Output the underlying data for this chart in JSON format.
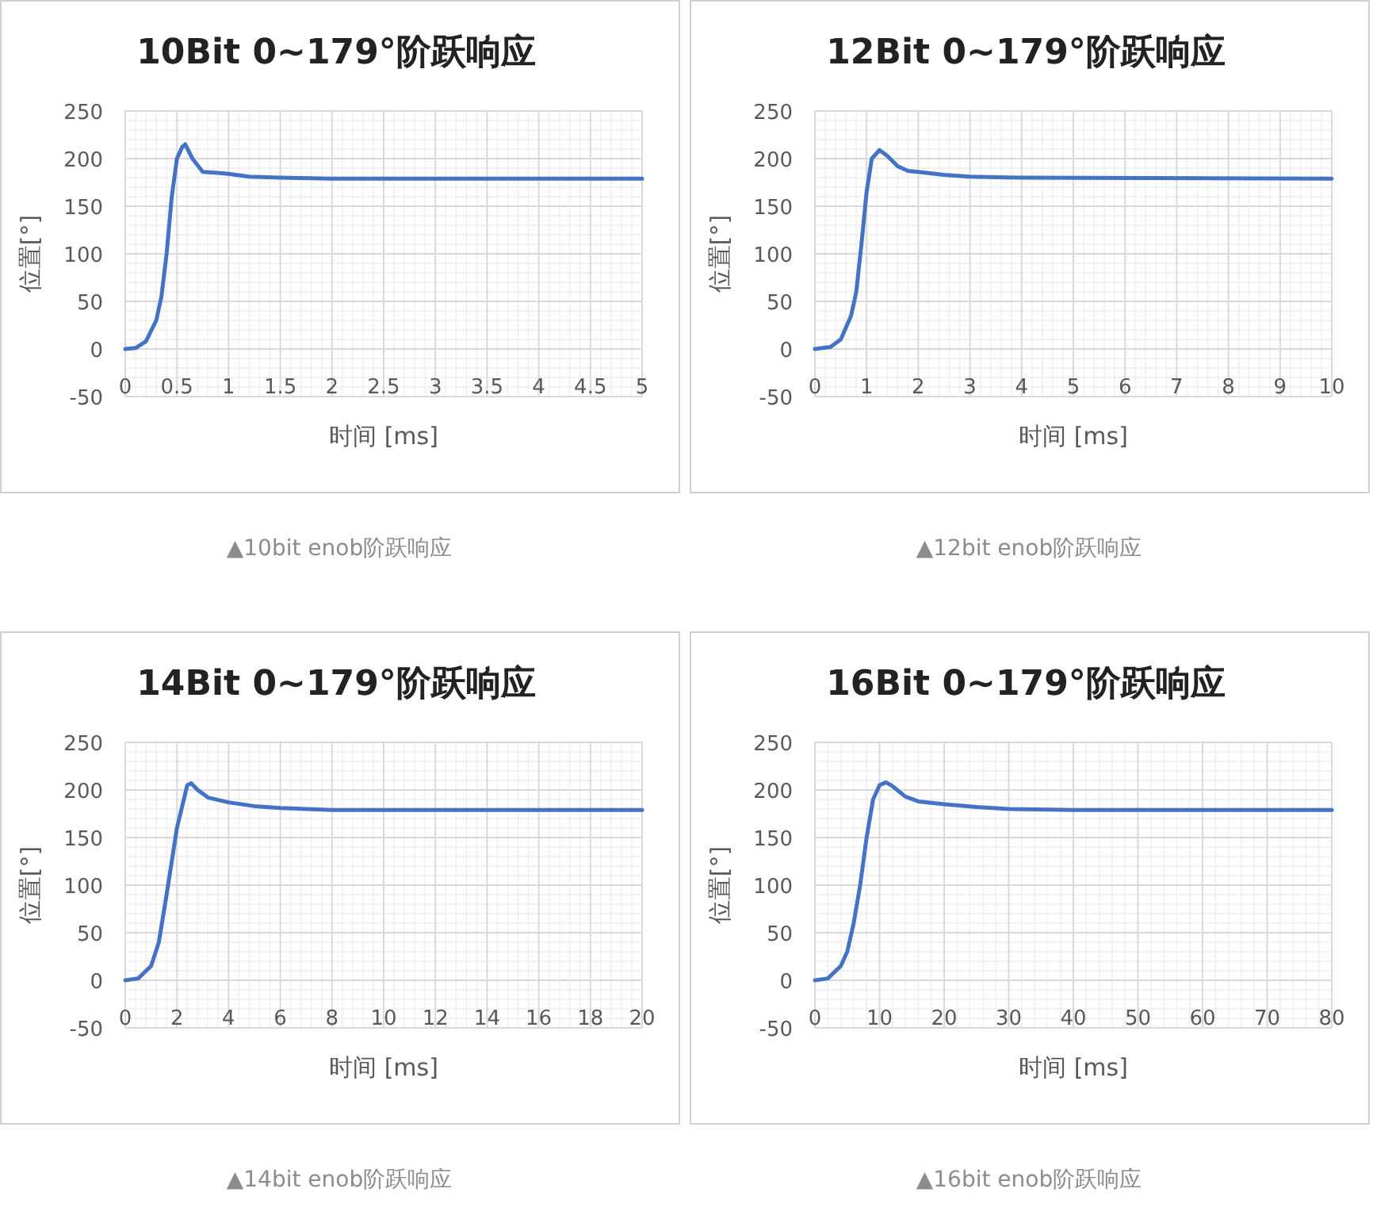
{
  "chart_data": [
    {
      "type": "line",
      "title": "10Bit 0~179°阶跃响应",
      "xlabel": "时间 [ms]",
      "ylabel": "位置[°]",
      "color": "#4472c4",
      "grid": true,
      "xlim": [
        0,
        5
      ],
      "xticks": [
        0,
        0.5,
        1,
        1.5,
        2,
        2.5,
        3,
        3.5,
        4,
        4.5,
        5
      ],
      "ylim": [
        -50,
        250
      ],
      "yticks": [
        -50,
        0,
        50,
        100,
        150,
        200,
        250
      ],
      "x": [
        0,
        0.1,
        0.2,
        0.3,
        0.35,
        0.4,
        0.45,
        0.5,
        0.55,
        0.58,
        0.65,
        0.75,
        0.9,
        1.0,
        1.2,
        1.5,
        2,
        5
      ],
      "values": [
        0,
        1,
        8,
        30,
        55,
        100,
        160,
        200,
        212,
        215,
        200,
        186,
        185,
        184,
        181,
        180,
        179,
        179
      ],
      "annotations": [
        "▲10bit enob阶跃响应"
      ]
    },
    {
      "type": "line",
      "title": "12Bit 0~179°阶跃响应",
      "xlabel": "时间 [ms]",
      "ylabel": "位置[°]",
      "color": "#4472c4",
      "grid": true,
      "xlim": [
        0,
        10
      ],
      "xticks": [
        0,
        1,
        2,
        3,
        4,
        5,
        6,
        7,
        8,
        9,
        10
      ],
      "ylim": [
        -50,
        250
      ],
      "yticks": [
        -50,
        0,
        50,
        100,
        150,
        200,
        250
      ],
      "x": [
        0,
        0.3,
        0.5,
        0.7,
        0.8,
        0.9,
        1.0,
        1.1,
        1.25,
        1.4,
        1.6,
        1.8,
        2,
        2.5,
        3,
        4,
        10
      ],
      "values": [
        0,
        2,
        10,
        35,
        60,
        110,
        165,
        200,
        209,
        203,
        192,
        187,
        186,
        183,
        181,
        180,
        179
      ],
      "annotations": [
        "▲12bit enob阶跃响应"
      ]
    },
    {
      "type": "line",
      "title": "14Bit 0~179°阶跃响应",
      "xlabel": "时间 [ms]",
      "ylabel": "位置[°]",
      "color": "#4472c4",
      "grid": true,
      "xlim": [
        0,
        20
      ],
      "xticks": [
        0,
        2,
        4,
        6,
        8,
        10,
        12,
        14,
        16,
        18,
        20
      ],
      "ylim": [
        -50,
        250
      ],
      "yticks": [
        -50,
        0,
        50,
        100,
        150,
        200,
        250
      ],
      "x": [
        0,
        0.5,
        1,
        1.3,
        1.6,
        2.0,
        2.4,
        2.55,
        2.8,
        3.2,
        4,
        5,
        6,
        8,
        20
      ],
      "values": [
        0,
        2,
        15,
        40,
        90,
        160,
        205,
        207,
        200,
        192,
        187,
        183,
        181,
        179,
        179
      ],
      "annotations": [
        "▲14bit enob阶跃响应"
      ]
    },
    {
      "type": "line",
      "title": "16Bit 0~179°阶跃响应",
      "xlabel": "时间 [ms]",
      "ylabel": "位置[°]",
      "color": "#4472c4",
      "grid": true,
      "xlim": [
        0,
        80
      ],
      "xticks": [
        0,
        10,
        20,
        30,
        40,
        50,
        60,
        70,
        80
      ],
      "ylim": [
        -50,
        250
      ],
      "yticks": [
        -50,
        0,
        50,
        100,
        150,
        200,
        250
      ],
      "x": [
        0,
        2,
        4,
        5,
        6,
        7,
        8,
        9,
        10,
        11,
        12,
        14,
        16,
        20,
        25,
        30,
        40,
        80
      ],
      "values": [
        0,
        2,
        15,
        30,
        60,
        100,
        150,
        190,
        205,
        208,
        204,
        193,
        188,
        185,
        182,
        180,
        179,
        179
      ],
      "annotations": [
        "▲16bit enob阶跃响应"
      ]
    }
  ]
}
